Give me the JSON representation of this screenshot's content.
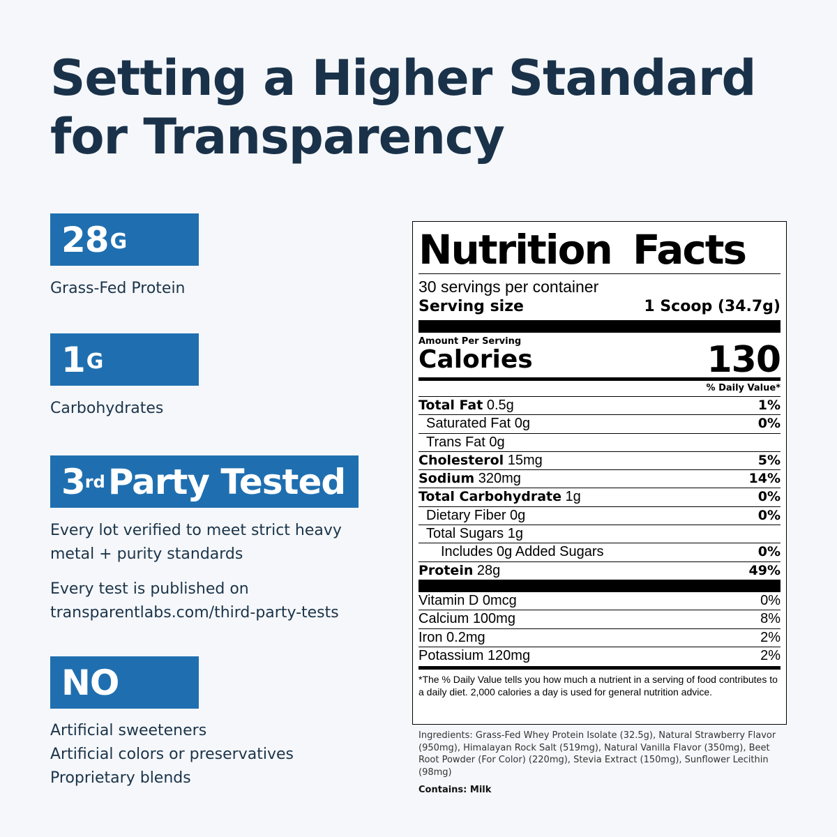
{
  "headline": {
    "line1": "Setting a Higher Standard",
    "line2": "for Transparency"
  },
  "highlights": {
    "protein": {
      "value": "28",
      "unit": "G",
      "caption": "Grass-Fed Protein"
    },
    "carbs": {
      "value": "1",
      "unit": "G",
      "caption": "Carbohydrates"
    },
    "tested": {
      "prefix": "3",
      "sup": "rd",
      "rest": "Party Tested",
      "desc_line1": "Every lot verified to meet strict heavy",
      "desc_line2": "metal + purity standards",
      "published_line1": "Every test is published on",
      "published_line2": "transparentlabs.com/third-party-tests"
    },
    "no": {
      "label": "NO",
      "items": [
        "Artificial sweeteners",
        "Artificial colors or preservatives",
        "Proprietary blends"
      ]
    }
  },
  "nutrition": {
    "title": "Nutrition Facts",
    "servings": "30 servings per container",
    "serving_size_label": "Serving size",
    "serving_size_value": "1 Scoop (34.7g)",
    "amount_per_serving": "Amount Per Serving",
    "calories_label": "Calories",
    "calories_value": "130",
    "daily_value_header": "% Daily Value*",
    "rows": [
      {
        "name": "Total Fat",
        "amount": "0.5g",
        "pct": "1%"
      },
      {
        "name": "Saturated Fat",
        "amount": "0g",
        "pct": "0%"
      },
      {
        "name": "Trans Fat",
        "amount": "0g",
        "pct": ""
      },
      {
        "name": "Cholesterol",
        "amount": "15mg",
        "pct": "5%"
      },
      {
        "name": "Sodium",
        "amount": "320mg",
        "pct": "14%"
      },
      {
        "name": "Total Carbohydrate",
        "amount": "1g",
        "pct": "0%"
      },
      {
        "name": "Dietary Fiber",
        "amount": "0g",
        "pct": "0%"
      },
      {
        "name": "Total Sugars",
        "amount": "1g",
        "pct": ""
      },
      {
        "name": "Includes 0g Added Sugars",
        "amount": "",
        "pct": "0%"
      },
      {
        "name": "Protein",
        "amount": "28g",
        "pct": "49%"
      }
    ],
    "vitamins": [
      {
        "name": "Vitamin D",
        "amount": "0mcg",
        "pct": "0%"
      },
      {
        "name": "Calcium",
        "amount": "100mg",
        "pct": "8%"
      },
      {
        "name": "Iron",
        "amount": "0.2mg",
        "pct": "2%"
      },
      {
        "name": "Potassium",
        "amount": "120mg",
        "pct": "2%"
      }
    ],
    "footnote": "*The % Daily Value tells you how much a nutrient in a serving of food contributes to a daily diet. 2,000 calories a day is used for general nutrition advice."
  },
  "ingredients": "Ingredients: Grass-Fed Whey Protein Isolate (32.5g), Natural Strawberry Flavor (950mg), Himalayan Rock Salt (519mg), Natural Vanilla Flavor (350mg), Beet Root Powder (For Color) (220mg), Stevia Extract (150mg), Sunflower Lecithin (98mg)",
  "contains": "Contains: Milk"
}
